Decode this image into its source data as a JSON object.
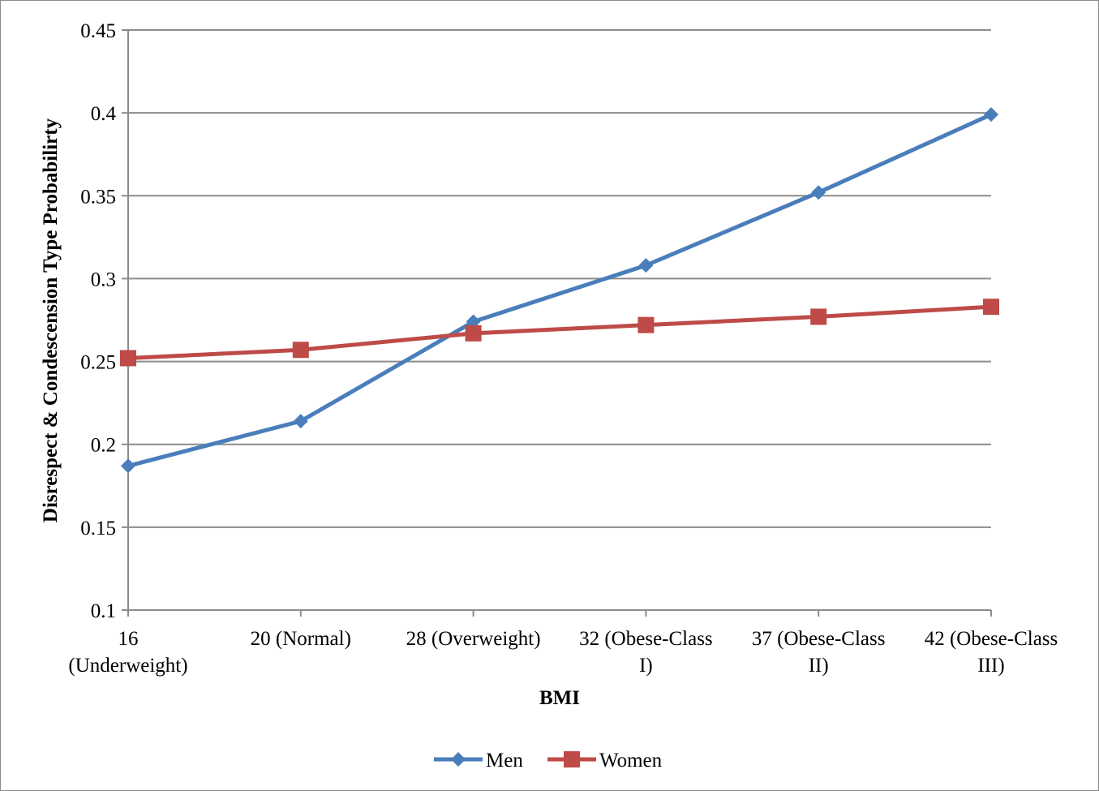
{
  "chart_data": {
    "type": "line",
    "title": "",
    "xlabel": "BMI",
    "ylabel": "Disrespect & Condescension  Type Probabilirty",
    "categories": [
      [
        "16",
        "(Underweight)"
      ],
      [
        "20 (Normal)"
      ],
      [
        "28 (Overweight)"
      ],
      [
        "32 (Obese-Class",
        "I)"
      ],
      [
        "37 (Obese-Class",
        "II)"
      ],
      [
        "42 (Obese-Class",
        "III)"
      ]
    ],
    "ylim": [
      0.1,
      0.45
    ],
    "yticks": [
      "0.1",
      "0.15",
      "0.2",
      "0.25",
      "0.3",
      "0.35",
      "0.4",
      "0.45"
    ],
    "grid": true,
    "legend_position": "bottom",
    "series": [
      {
        "name": "Men",
        "values": [
          0.187,
          0.214,
          0.274,
          0.308,
          0.352,
          0.399
        ],
        "color": "#4a7ebb",
        "marker": "diamond"
      },
      {
        "name": "Women",
        "values": [
          0.252,
          0.257,
          0.267,
          0.272,
          0.277,
          0.283
        ],
        "color": "#be4b48",
        "marker": "square"
      }
    ]
  }
}
